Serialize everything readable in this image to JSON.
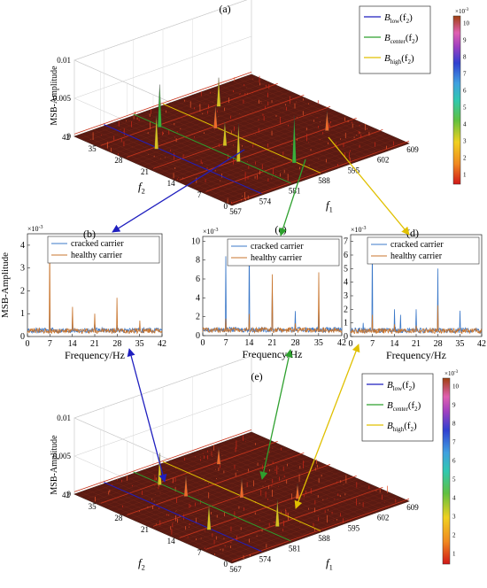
{
  "chart_data": [
    {
      "type": "surface3d",
      "panel_label": "(a)",
      "zlabel": "MSB-Amplitude",
      "xlabel_main": "f",
      "xlabel_sub": "1",
      "ylabel_main": "f",
      "ylabel_sub": "2",
      "x_ticks": [
        "567",
        "574",
        "581",
        "588",
        "595",
        "602",
        "609"
      ],
      "y_ticks": [
        "0",
        "7",
        "14",
        "21",
        "28",
        "35",
        "42"
      ],
      "z_ticks": [
        "0",
        "0.005",
        "0.01"
      ],
      "xlim": [
        567,
        609
      ],
      "ylim": [
        0,
        42
      ],
      "zlim": [
        0,
        0.01
      ],
      "colorbar": {
        "ticks": [
          "1",
          "2",
          "3",
          "4",
          "5",
          "6",
          "7",
          "8",
          "9",
          "10"
        ],
        "exponent_base": "×10",
        "exponent": "-3"
      },
      "legend": [
        {
          "main": "B",
          "sub": "low",
          "arg": "(f",
          "argsub": "2",
          "close": ")",
          "color": "#1f1fbf"
        },
        {
          "main": "B",
          "sub": "center",
          "arg": "(f",
          "argsub": "2",
          "close": ")",
          "color": "#2ea02e"
        },
        {
          "main": "B",
          "sub": "high",
          "arg": "(f",
          "argsub": "2",
          "close": ")",
          "color": "#e0c000"
        }
      ],
      "peaks": [
        {
          "f1": 574,
          "f2": 28,
          "z": 0.0045
        },
        {
          "f1": 581,
          "f2": 14,
          "z": 0.005
        },
        {
          "f1": 584,
          "f2": 21,
          "z": 0.0032
        },
        {
          "f1": 588,
          "f2": 7,
          "z": 0.0062
        },
        {
          "f1": 595,
          "f2": 35,
          "z": 0.0038
        },
        {
          "f1": 581,
          "f2": 35,
          "z": 0.0056
        },
        {
          "f1": 588,
          "f2": 28,
          "z": 0.003
        },
        {
          "f1": 602,
          "f2": 14,
          "z": 0.0026
        }
      ]
    },
    {
      "type": "line",
      "panel_label": "(b)",
      "ylabel": "MSB-Amplitude",
      "xlabel": "Frequency/Hz",
      "exponent_base": "×10",
      "exponent": "-3",
      "xlim": [
        0,
        42
      ],
      "ylim": [
        0,
        4.5
      ],
      "x_ticks": [
        "0",
        "7",
        "14",
        "21",
        "28",
        "35",
        "42"
      ],
      "y_ticks": [
        "0",
        "1",
        "2",
        "3",
        "4"
      ],
      "series": [
        {
          "name": "cracked carrier",
          "color": "#3b78c8",
          "peaks": [
            [
              7,
              1.4
            ],
            [
              14,
              0.9
            ],
            [
              21,
              0.6
            ],
            [
              28,
              0.5
            ],
            [
              35,
              0.4
            ]
          ]
        },
        {
          "name": "healthy carrier",
          "color": "#c8742c",
          "peaks": [
            [
              7,
              4.3
            ],
            [
              14,
              1.3
            ],
            [
              21,
              1.0
            ],
            [
              28,
              1.7
            ],
            [
              35,
              0.7
            ]
          ]
        }
      ]
    },
    {
      "type": "line",
      "panel_label": "(c)",
      "ylabel": "",
      "xlabel": "Frequency/Hz",
      "exponent_base": "×10",
      "exponent": "-3",
      "xlim": [
        0,
        42
      ],
      "ylim": [
        0,
        10.5
      ],
      "x_ticks": [
        "0",
        "7",
        "14",
        "21",
        "28",
        "35",
        "42"
      ],
      "y_ticks": [
        "0",
        "2",
        "4",
        "6",
        "8",
        "10"
      ],
      "series": [
        {
          "name": "cracked carrier",
          "color": "#3b78c8",
          "peaks": [
            [
              7,
              8.4
            ],
            [
              14,
              10.2
            ],
            [
              21,
              5.4
            ],
            [
              28,
              2.6
            ],
            [
              35,
              3.3
            ]
          ]
        },
        {
          "name": "healthy carrier",
          "color": "#c8742c",
          "peaks": [
            [
              7,
              1.8
            ],
            [
              14,
              2.3
            ],
            [
              21,
              6.5
            ],
            [
              28,
              1.3
            ],
            [
              35,
              6.7
            ]
          ]
        }
      ]
    },
    {
      "type": "line",
      "panel_label": "(d)",
      "ylabel": "",
      "xlabel": "Frequency/Hz",
      "exponent_base": "×10",
      "exponent": "-3",
      "xlim": [
        0,
        42
      ],
      "ylim": [
        0,
        7.5
      ],
      "x_ticks": [
        "0",
        "7",
        "14",
        "21",
        "28",
        "35",
        "42"
      ],
      "y_ticks": [
        "0",
        "1",
        "2",
        "3",
        "4",
        "5",
        "6",
        "7"
      ],
      "series": [
        {
          "name": "cracked carrier",
          "color": "#3b78c8",
          "peaks": [
            [
              7,
              7.2
            ],
            [
              14,
              2.0
            ],
            [
              21,
              2.0
            ],
            [
              28,
              5.0
            ],
            [
              35,
              1.9
            ],
            [
              16,
              1.6
            ],
            [
              4,
              1.0
            ]
          ]
        },
        {
          "name": "healthy carrier",
          "color": "#c8742c",
          "peaks": [
            [
              7,
              1.6
            ],
            [
              14,
              0.9
            ],
            [
              21,
              0.8
            ],
            [
              28,
              2.3
            ],
            [
              35,
              0.6
            ]
          ]
        }
      ]
    },
    {
      "type": "surface3d",
      "panel_label": "(e)",
      "zlabel": "MSB-Amplitude",
      "xlabel_main": "f",
      "xlabel_sub": "1",
      "ylabel_main": "f",
      "ylabel_sub": "2",
      "x_ticks": [
        "567",
        "574",
        "581",
        "588",
        "595",
        "602",
        "609"
      ],
      "y_ticks": [
        "0",
        "7",
        "14",
        "21",
        "28",
        "35",
        "42"
      ],
      "z_ticks": [
        "0",
        "0.005",
        "0.01"
      ],
      "xlim": [
        567,
        609
      ],
      "ylim": [
        0,
        42
      ],
      "zlim": [
        0,
        0.01
      ],
      "colorbar": {
        "ticks": [
          "1",
          "2",
          "3",
          "4",
          "5",
          "6",
          "7",
          "8",
          "9",
          "10"
        ],
        "exponent_base": "×10",
        "exponent": "-3"
      },
      "legend": [
        {
          "main": "B",
          "sub": "low",
          "arg": "(f",
          "argsub": "2",
          "close": ")",
          "color": "#1f1fbf"
        },
        {
          "main": "B",
          "sub": "center",
          "arg": "(f",
          "argsub": "2",
          "close": ")",
          "color": "#2ea02e"
        },
        {
          "main": "B",
          "sub": "high",
          "arg": "(f",
          "argsub": "2",
          "close": ")",
          "color": "#e0c000"
        }
      ],
      "peaks": [
        {
          "f1": 574,
          "f2": 14,
          "z": 0.0034
        },
        {
          "f1": 581,
          "f2": 28,
          "z": 0.0028
        },
        {
          "f1": 584,
          "f2": 7,
          "z": 0.0036
        },
        {
          "f1": 588,
          "f2": 21,
          "z": 0.0025
        },
        {
          "f1": 595,
          "f2": 35,
          "z": 0.0022
        },
        {
          "f1": 581,
          "f2": 35,
          "z": 0.0042
        },
        {
          "f1": 595,
          "f2": 14,
          "z": 0.002
        }
      ]
    }
  ]
}
